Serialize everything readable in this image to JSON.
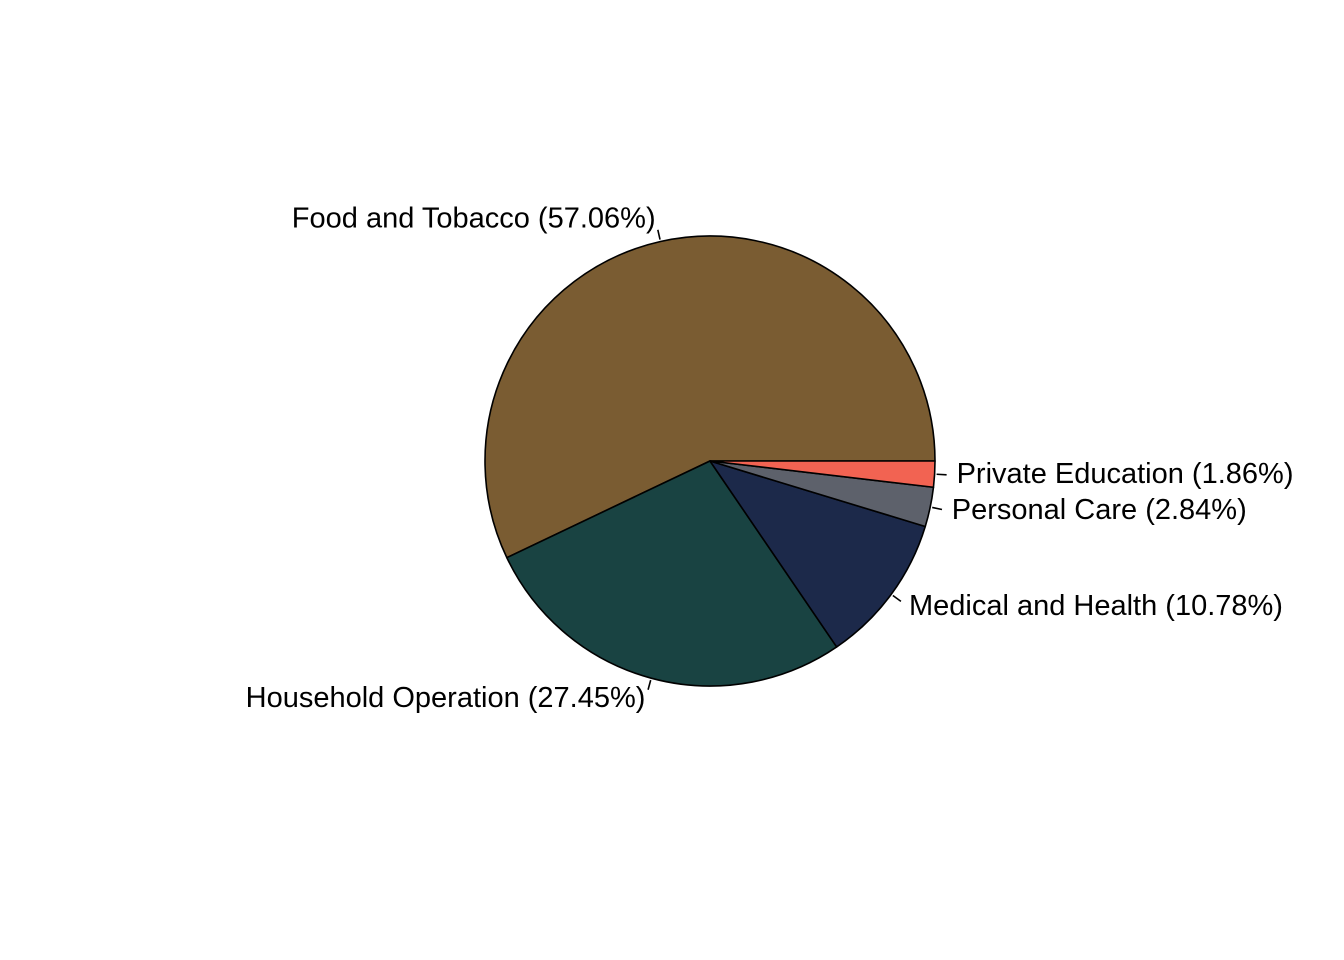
{
  "chart_data": {
    "type": "pie",
    "title": "",
    "start_angle_deg": 0,
    "direction": "counterclockwise",
    "legend": "none",
    "slices": [
      {
        "label": "Food and Tobacco (57.06%)",
        "value": 57.06,
        "color": "#7a5c32"
      },
      {
        "label": "Household Operation (27.45%)",
        "value": 27.45,
        "color": "#194342"
      },
      {
        "label": "Medical and Health (10.78%)",
        "value": 10.78,
        "color": "#1c294a"
      },
      {
        "label": "Personal Care (2.84%)",
        "value": 2.84,
        "color": "#5d616b"
      },
      {
        "label": "Private Education (1.86%)",
        "value": 1.86,
        "color": "#f26352"
      }
    ]
  }
}
